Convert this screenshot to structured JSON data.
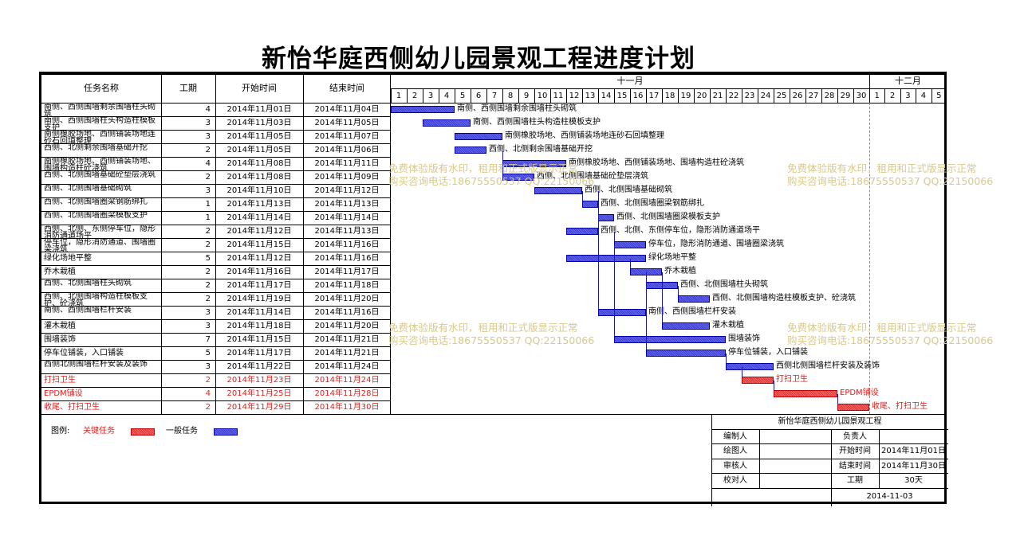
{
  "title": "新怡华庭西侧幼儿园景观工程进度计划",
  "headers": {
    "name": "任务名称",
    "duration": "工期",
    "start": "开始时间",
    "end": "结束时间"
  },
  "months": [
    "十一月",
    "十二月"
  ],
  "days": [
    "1",
    "2",
    "3",
    "4",
    "5",
    "6",
    "7",
    "8",
    "9",
    "10",
    "11",
    "12",
    "13",
    "14",
    "15",
    "16",
    "17",
    "18",
    "19",
    "20",
    "21",
    "22",
    "23",
    "24",
    "25",
    "26",
    "27",
    "28",
    "29",
    "30",
    "1",
    "2",
    "3",
    "4",
    "5"
  ],
  "tasks": [
    {
      "name": "南侧、西侧围墙剩余围墙柱头砌筑",
      "duration": "4",
      "start": "2014年11月01日",
      "end": "2014年11月04日",
      "critical": false,
      "s": 1,
      "e": 4,
      "label": "南侧、西侧围墙剩余围墙柱头砌筑"
    },
    {
      "name": "南侧、西侧围墙柱头构造柱模板支护",
      "duration": "3",
      "start": "2014年11月03日",
      "end": "2014年11月05日",
      "critical": false,
      "s": 3,
      "e": 5,
      "label": "南侧、西侧围墙柱头构造柱模板支护"
    },
    {
      "name": "南侧橡胶场地、西侧铺装场地连砂石回填整理",
      "duration": "3",
      "start": "2014年11月05日",
      "end": "2014年11月07日",
      "critical": false,
      "s": 5,
      "e": 7,
      "label": "南侧橡胶场地、西侧铺装场地连砂石回填整理"
    },
    {
      "name": "西侧、北侧剩余围墙基础开挖",
      "duration": "2",
      "start": "2014年11月05日",
      "end": "2014年11月06日",
      "critical": false,
      "s": 5,
      "e": 6,
      "label": "西侧、北侧剩余围墙基础开挖"
    },
    {
      "name": "南侧橡胶场地、西侧铺装场地、围墙构造柱砼浇筑",
      "duration": "4",
      "start": "2014年11月08日",
      "end": "2014年11月11日",
      "critical": false,
      "s": 8,
      "e": 11,
      "label": "南侧橡胶场地、西侧铺装场地、围墙构造柱砼浇筑"
    },
    {
      "name": "西侧、北侧围墙基础砼垫层浇筑",
      "duration": "2",
      "start": "2014年11月08日",
      "end": "2014年11月09日",
      "critical": false,
      "s": 8,
      "e": 9,
      "label": "西侧、北侧围墙基础砼垫层浇筑"
    },
    {
      "name": "西侧、北侧围墙基础砌筑",
      "duration": "3",
      "start": "2014年11月10日",
      "end": "2014年11月12日",
      "critical": false,
      "s": 10,
      "e": 12,
      "label": "西侧、北侧围墙基础砌筑"
    },
    {
      "name": "西侧、北侧围墙圈梁钢筋绑扎",
      "duration": "1",
      "start": "2014年11月13日",
      "end": "2014年11月13日",
      "critical": false,
      "s": 13,
      "e": 13,
      "label": "西侧、北侧围墙圈梁钢筋绑扎"
    },
    {
      "name": "西侧、北侧围墙圈梁模板支护",
      "duration": "1",
      "start": "2014年11月14日",
      "end": "2014年11月14日",
      "critical": false,
      "s": 14,
      "e": 14,
      "label": "西侧、北侧围墙圈梁模板支护"
    },
    {
      "name": "西侧、北侧、东侧停车位，隐形消防通道场平",
      "duration": "2",
      "start": "2014年11月12日",
      "end": "2014年11月13日",
      "critical": false,
      "s": 12,
      "e": 13,
      "label": "西侧、北侧、东侧停车位，隐形消防通道场平"
    },
    {
      "name": "停车位，隐形消防通道、围墙圈梁浇筑",
      "duration": "2",
      "start": "2014年11月15日",
      "end": "2014年11月16日",
      "critical": false,
      "s": 15,
      "e": 16,
      "label": "停车位，隐形消防通道、围墙圈梁浇筑"
    },
    {
      "name": "绿化场地平整",
      "duration": "5",
      "start": "2014年11月12日",
      "end": "2014年11月16日",
      "critical": false,
      "s": 12,
      "e": 16,
      "label": "绿化场地平整"
    },
    {
      "name": "乔木栽植",
      "duration": "2",
      "start": "2014年11月16日",
      "end": "2014年11月17日",
      "critical": false,
      "s": 16,
      "e": 17,
      "label": "乔木栽植"
    },
    {
      "name": "西侧、北侧围墙柱头砌筑",
      "duration": "2",
      "start": "2014年11月17日",
      "end": "2014年11月18日",
      "critical": false,
      "s": 17,
      "e": 18,
      "label": "西侧、北侧围墙柱头砌筑"
    },
    {
      "name": "西侧、北侧围墙构造柱模板支护、砼浇筑",
      "duration": "2",
      "start": "2014年11月19日",
      "end": "2014年11月20日",
      "critical": false,
      "s": 19,
      "e": 20,
      "label": "西侧、北侧围墙构造柱模板支护、砼浇筑"
    },
    {
      "name": "南侧、西侧围墙栏杆安装",
      "duration": "3",
      "start": "2014年11月14日",
      "end": "2014年11月16日",
      "critical": false,
      "s": 14,
      "e": 16,
      "label": "南侧、西侧围墙栏杆安装"
    },
    {
      "name": "灌木栽植",
      "duration": "3",
      "start": "2014年11月18日",
      "end": "2014年11月20日",
      "critical": false,
      "s": 18,
      "e": 20,
      "label": "灌木栽植"
    },
    {
      "name": "围墙装饰",
      "duration": "7",
      "start": "2014年11月15日",
      "end": "2014年11月21日",
      "critical": false,
      "s": 15,
      "e": 21,
      "label": "围墙装饰"
    },
    {
      "name": "停车位铺装，入口铺装",
      "duration": "5",
      "start": "2014年11月17日",
      "end": "2014年11月21日",
      "critical": false,
      "s": 17,
      "e": 21,
      "label": "停车位铺装，入口铺装"
    },
    {
      "name": "西侧北侧围墙栏杆安装及装饰",
      "duration": "3",
      "start": "2014年11月22日",
      "end": "2014年11月24日",
      "critical": false,
      "s": 22,
      "e": 24,
      "label": "西侧北侧围墙栏杆安装及装饰"
    },
    {
      "name": "打扫卫生",
      "duration": "2",
      "start": "2014年11月23日",
      "end": "2014年11月24日",
      "critical": true,
      "s": 23,
      "e": 24,
      "label": "打扫卫生"
    },
    {
      "name": "EPDM铺设",
      "duration": "4",
      "start": "2014年11月25日",
      "end": "2014年11月28日",
      "critical": true,
      "s": 25,
      "e": 28,
      "label": "EPDM铺设"
    },
    {
      "name": "收尾、打扫卫生",
      "duration": "2",
      "start": "2014年11月29日",
      "end": "2014年11月30日",
      "critical": true,
      "s": 29,
      "e": 30,
      "label": "收尾、打扫卫生"
    }
  ],
  "watermarks": {
    "line1": "免费体验版有水印，租用和正式版显示正常",
    "line2": "购买咨询电话:18675550537 QQ:22150066"
  },
  "legend": {
    "label": "图例:",
    "critical": "关键任务",
    "normal": "一般任务"
  },
  "summary": {
    "project": "新怡华庭西侧幼儿园景观工程",
    "rows": [
      {
        "k1": "编制人",
        "v1": "",
        "k2": "负责人",
        "v2": ""
      },
      {
        "k1": "绘图人",
        "v1": "",
        "k2": "开始时间",
        "v2": "2014年11月01日"
      },
      {
        "k1": "审核人",
        "v1": "",
        "k2": "结束时间",
        "v2": "2014年11月30日"
      },
      {
        "k1": "校对人",
        "v1": "",
        "k2": "工期",
        "v2": "30天"
      }
    ],
    "date": "2014-11-03"
  },
  "colors": {
    "normal": "#3b3bd8",
    "critical": "#e03030",
    "watermark": "#d9c98a"
  }
}
